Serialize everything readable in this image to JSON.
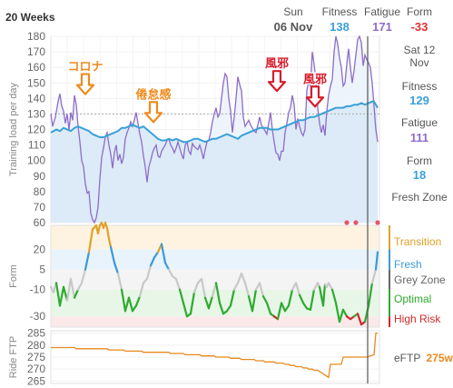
{
  "header": {
    "range_label": "20 Weeks",
    "date_label": "Sun",
    "date_value": "06 Nov",
    "fitness_label": "Fitness",
    "fitness_value": "138",
    "fatigue_label": "Fatigue",
    "fatigue_value": "171",
    "form_label": "Form",
    "form_value": "-33"
  },
  "right_panel": {
    "date_line1": "Sat 12",
    "date_line2": "Nov",
    "fitness_label": "Fitness",
    "fitness_value": "129",
    "fatigue_label": "Fatigue",
    "fatigue_value": "111",
    "form_label": "Form",
    "form_value": "18",
    "zone_label": "Fresh Zone",
    "form_zones": [
      {
        "label": "Transition",
        "color": "#e0a12a"
      },
      {
        "label": "Fresh",
        "color": "#3a9ad9"
      },
      {
        "label": "Grey Zone",
        "color": "#666666"
      },
      {
        "label": "Optimal",
        "color": "#2eaa2e"
      },
      {
        "label": "High Risk",
        "color": "#cc2a2a"
      }
    ],
    "eftp_label": "eFTP",
    "eftp_value": "275w"
  },
  "colors": {
    "fitness": "#3aa0d8",
    "fatigue": "#8e6cc8",
    "form_value": "#e03030",
    "eftp": "#e8891c",
    "annotation_orange": "#f08a1c",
    "annotation_red": "#d61c2a"
  },
  "chart_data": [
    {
      "type": "line",
      "ylabel": "Training load per day",
      "ylim": [
        60,
        180
      ],
      "yticks": [
        "180",
        "170",
        "160",
        "150",
        "140",
        "130",
        "120",
        "110",
        "100",
        "90",
        "80",
        "70",
        "60"
      ],
      "reference_line": 130,
      "series": [
        {
          "name": "Fitness",
          "x": [
            0,
            3,
            6,
            10,
            14,
            18,
            22,
            26,
            30,
            34,
            38,
            42,
            46,
            50,
            54,
            58,
            62,
            66,
            70,
            74,
            78,
            82,
            86,
            90,
            94,
            98,
            102,
            106,
            110,
            114,
            118,
            122,
            126,
            130,
            134,
            138,
            142,
            146,
            150,
            154,
            158,
            162,
            166,
            170,
            174,
            178,
            182,
            186,
            190,
            194,
            198,
            202,
            206,
            210,
            214,
            218,
            222,
            226,
            230,
            234,
            238,
            242,
            246,
            250,
            254,
            258,
            262,
            266,
            270,
            274,
            278,
            282,
            286,
            290,
            294,
            298,
            302,
            306,
            310,
            314,
            318,
            322,
            326,
            330,
            334,
            338,
            342,
            346,
            350,
            354,
            356,
            360
          ],
          "values": [
            118,
            119,
            120,
            119,
            121,
            120,
            119,
            121,
            122,
            121,
            120,
            119,
            117,
            116,
            115,
            115,
            116,
            117,
            118,
            119,
            121,
            121,
            122,
            123,
            122,
            121,
            122,
            120,
            118,
            116,
            114,
            113,
            113,
            114,
            113,
            114,
            113,
            112,
            112,
            113,
            114,
            114,
            113,
            112,
            113,
            114,
            114,
            115,
            116,
            117,
            116,
            115,
            114,
            116,
            117,
            118,
            119,
            120,
            121,
            121,
            121,
            120,
            120,
            120,
            121,
            122,
            123,
            124,
            125,
            126,
            126,
            127,
            128,
            128,
            129,
            130,
            131,
            132,
            133,
            134,
            134,
            134,
            135,
            135,
            136,
            136,
            137,
            136,
            137,
            138,
            138,
            134
          ]
        },
        {
          "name": "Fatigue",
          "x": [
            0,
            2,
            5,
            8,
            10,
            12,
            14,
            16,
            18,
            20,
            22,
            24,
            26,
            28,
            30,
            32,
            34,
            36,
            38,
            40,
            42,
            44,
            46,
            48,
            50,
            52,
            54,
            56,
            58,
            60,
            62,
            64,
            66,
            68,
            70,
            72,
            74,
            76,
            78,
            80,
            82,
            84,
            86,
            88,
            90,
            92,
            94,
            96,
            98,
            100,
            102,
            104,
            106,
            108,
            110,
            112,
            114,
            116,
            118,
            120,
            122,
            124,
            126,
            128,
            130,
            132,
            134,
            136,
            138,
            140,
            142,
            144,
            146,
            148,
            150,
            152,
            154,
            156,
            158,
            160,
            162,
            164,
            166,
            168,
            170,
            172,
            174,
            176,
            178,
            180,
            182,
            184,
            186,
            188,
            190,
            192,
            194,
            196,
            198,
            200,
            202,
            204,
            206,
            208,
            210,
            212,
            214,
            216,
            218,
            220,
            222,
            224,
            226,
            228,
            230,
            232,
            234,
            236,
            238,
            240,
            242,
            244,
            246,
            248,
            250,
            252,
            254,
            256,
            258,
            260,
            262,
            264,
            266,
            268,
            270,
            272,
            274,
            276,
            278,
            280,
            282,
            284,
            286,
            288,
            290,
            292,
            294,
            296,
            298,
            300,
            302,
            304,
            306,
            308,
            310,
            312,
            314,
            316,
            318,
            320,
            322,
            324,
            326,
            328,
            330,
            332,
            334,
            336,
            338,
            340,
            342,
            344,
            346,
            348,
            350,
            352,
            354,
            356,
            358,
            360
          ],
          "values": [
            130,
            122,
            128,
            138,
            143,
            135,
            132,
            124,
            130,
            120,
            131,
            126,
            142,
            136,
            122,
            112,
            100,
            96,
            85,
            79,
            80,
            66,
            62,
            60,
            63,
            70,
            88,
            102,
            108,
            115,
            118,
            110,
            104,
            95,
            105,
            110,
            100,
            104,
            98,
            102,
            114,
            118,
            121,
            125,
            122,
            126,
            131,
            124,
            117,
            112,
            103,
            96,
            86,
            96,
            100,
            105,
            108,
            110,
            103,
            102,
            106,
            108,
            110,
            113,
            114,
            110,
            108,
            105,
            108,
            112,
            108,
            104,
            101,
            110,
            112,
            106,
            104,
            111,
            109,
            108,
            107,
            110,
            106,
            101,
            107,
            112,
            113,
            118,
            125,
            130,
            134,
            128,
            130,
            140,
            150,
            156,
            154,
            140,
            132,
            118,
            128,
            140,
            154,
            149,
            145,
            128,
            122,
            124,
            126,
            123,
            121,
            119,
            118,
            123,
            128,
            123,
            121,
            119,
            117,
            124,
            131,
            120,
            112,
            105,
            104,
            100,
            106,
            106,
            118,
            124,
            131,
            134,
            142,
            136,
            120,
            127,
            122,
            118,
            116,
            120,
            145,
            151,
            148,
            170,
            162,
            152,
            134,
            124,
            118,
            123,
            116,
            132,
            142,
            148,
            152,
            170,
            180,
            175,
            166,
            160,
            148,
            150,
            162,
            172,
            160,
            150,
            158,
            168,
            178,
            180,
            176,
            161,
            168,
            165,
            163,
            160,
            150,
            135,
            120,
            112
          ]
        }
      ],
      "markers": {
        "name": "rest days",
        "x": [
          326,
          336,
          360
        ],
        "y": 60,
        "color": "#e8546a"
      },
      "annotations": [
        {
          "text": "コロナ",
          "x": 38,
          "y": 158,
          "arrow_x": 38,
          "color": "#f08a1c"
        },
        {
          "text": "倦怠感",
          "x": 113,
          "y": 140,
          "arrow_x": 113,
          "color": "#f08a1c"
        },
        {
          "text": "風邪",
          "x": 249,
          "y": 160,
          "arrow_x": 249,
          "color": "#d61c2a"
        },
        {
          "text": "風邪",
          "x": 291,
          "y": 150,
          "arrow_x": 291,
          "color": "#d61c2a"
        }
      ],
      "cursor_x": 349
    },
    {
      "type": "line",
      "ylabel": "Form",
      "ylim": [
        -38,
        38
      ],
      "yticks": [
        "20",
        "5",
        "-10",
        "-30"
      ],
      "zones": [
        {
          "name": "Transition",
          "from": 20,
          "to": 38,
          "color": "#fdf3e0"
        },
        {
          "name": "Fresh",
          "from": 5,
          "to": 20,
          "color": "#e9f3fb"
        },
        {
          "name": "Grey Zone",
          "from": -10,
          "to": 5,
          "color": "#f4f4f4"
        },
        {
          "name": "Optimal",
          "from": -30,
          "to": -10,
          "color": "#e8f6e8"
        },
        {
          "name": "High Risk",
          "from": -38,
          "to": -30,
          "color": "#fbe9e9"
        }
      ],
      "series": [
        {
          "name": "Form",
          "x": [
            0,
            3,
            6,
            10,
            14,
            18,
            22,
            26,
            30,
            34,
            38,
            42,
            46,
            50,
            52,
            54,
            56,
            58,
            60,
            62,
            64,
            66,
            70,
            74,
            78,
            82,
            86,
            90,
            94,
            98,
            102,
            106,
            110,
            114,
            118,
            122,
            126,
            130,
            134,
            138,
            142,
            146,
            150,
            154,
            158,
            162,
            166,
            170,
            174,
            178,
            182,
            186,
            190,
            194,
            198,
            202,
            206,
            210,
            214,
            218,
            222,
            226,
            230,
            234,
            238,
            242,
            246,
            250,
            254,
            258,
            262,
            266,
            270,
            274,
            278,
            282,
            286,
            290,
            294,
            296,
            298,
            300,
            302,
            304,
            306,
            310,
            314,
            318,
            322,
            326,
            330,
            334,
            338,
            342,
            346,
            350,
            354,
            358,
            360
          ],
          "values": [
            -8,
            -12,
            -5,
            -22,
            -8,
            -18,
            -2,
            -16,
            -10,
            -5,
            5,
            18,
            35,
            38,
            32,
            38,
            40,
            36,
            40,
            36,
            28,
            22,
            10,
            2,
            -10,
            -26,
            -16,
            -26,
            -22,
            -15,
            -5,
            -2,
            8,
            14,
            18,
            24,
            10,
            5,
            0,
            -2,
            -10,
            -20,
            -30,
            -28,
            -12,
            -5,
            -2,
            -16,
            -24,
            -15,
            -5,
            -20,
            -28,
            -26,
            -22,
            -10,
            -5,
            2,
            -5,
            -15,
            -26,
            -10,
            -5,
            -15,
            -20,
            -28,
            -30,
            -32,
            -20,
            -26,
            -22,
            -10,
            -5,
            -14,
            -20,
            -24,
            -25,
            -10,
            -5,
            -8,
            -15,
            -22,
            -6,
            -8,
            -5,
            -10,
            -20,
            -34,
            -25,
            -30,
            -32,
            -30,
            -28,
            -36,
            -34,
            -22,
            -5,
            5,
            18
          ]
        }
      ]
    },
    {
      "type": "line",
      "ylabel": "Ride FTP",
      "ylim": [
        264,
        286
      ],
      "yticks": [
        "285",
        "280",
        "275",
        "270",
        "265"
      ],
      "series": [
        {
          "name": "eFTP",
          "x": [
            0,
            26,
            28,
            62,
            64,
            80,
            82,
            100,
            102,
            130,
            132,
            146,
            148,
            164,
            166,
            180,
            182,
            196,
            198,
            208,
            210,
            224,
            226,
            234,
            236,
            246,
            248,
            256,
            258,
            262,
            264,
            268,
            270,
            276,
            278,
            282,
            284,
            288,
            290,
            294,
            296,
            298,
            300,
            302,
            304,
            306,
            308,
            320,
            322,
            346,
            348,
            356,
            358,
            360
          ],
          "values": [
            279,
            279,
            278.5,
            278.5,
            278,
            278,
            277.5,
            277.5,
            277,
            277,
            276.5,
            276.5,
            276,
            276,
            275.5,
            275.5,
            275,
            275,
            274.5,
            274.5,
            274,
            274,
            273.5,
            273.5,
            273,
            273,
            272.5,
            272.5,
            272,
            272,
            271.5,
            271.5,
            271,
            271,
            270.5,
            270.5,
            270,
            270,
            269.5,
            269.5,
            269,
            268.5,
            268,
            267.5,
            267,
            266.5,
            272,
            272,
            275,
            275,
            275,
            276,
            285,
            285
          ]
        }
      ]
    }
  ]
}
